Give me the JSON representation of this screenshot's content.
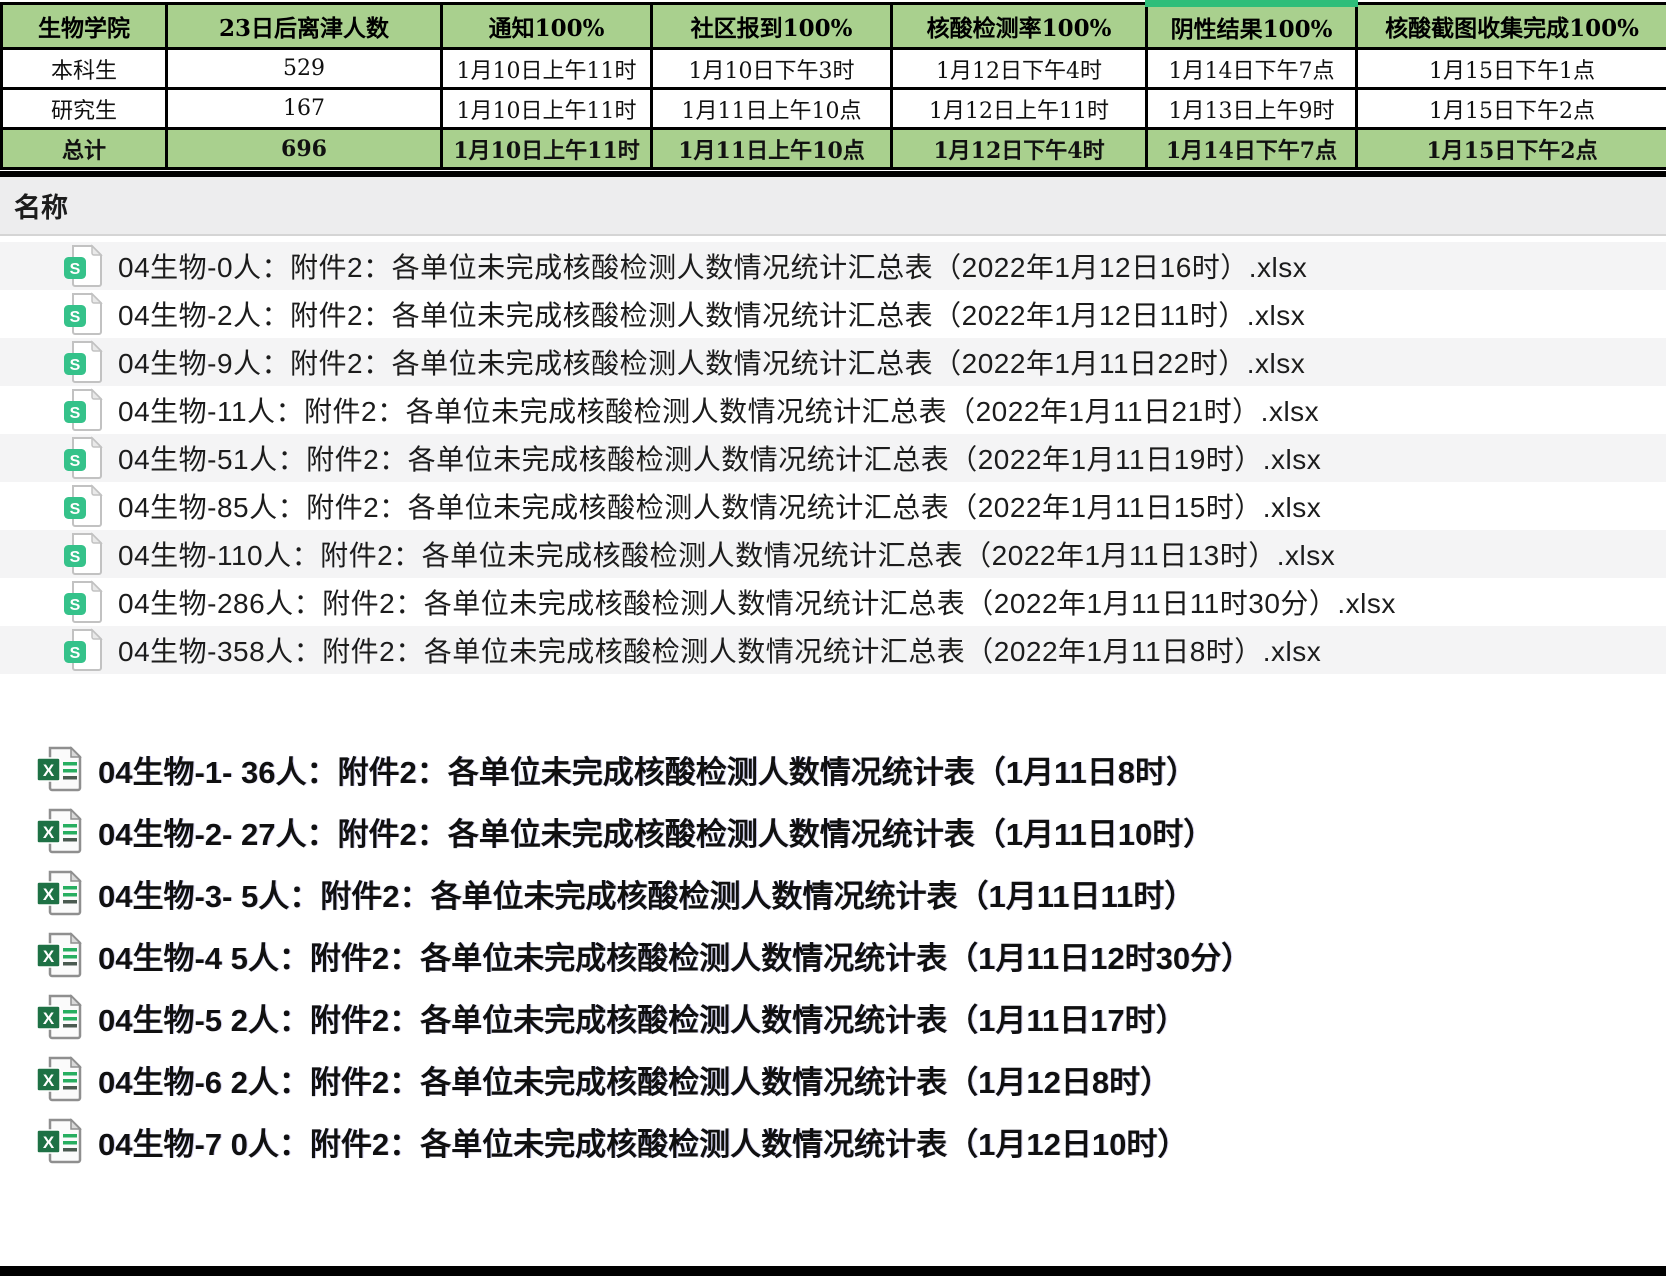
{
  "colors": {
    "table_green": "#a9d08e",
    "highlight_green": "#2fbe7a",
    "bar_gray": "#ededee",
    "stripe_gray": "#f4f4f5",
    "wps_green": "#35c28a",
    "excel_green": "#1e7145"
  },
  "table": {
    "columns": [
      "生物学院",
      "23日后离津人数",
      "通知100%",
      "社区报到100%",
      "核酸检测率100%",
      "阴性结果100%",
      "核酸截图收集完成100%"
    ],
    "highlighted_column_index": 5,
    "rows": [
      {
        "highlight": false,
        "cells": [
          "本科生",
          "529",
          "1月10日上午11时",
          "1月10日下午3时",
          "1月12日下午4时",
          "1月14日下午7点",
          "1月15日下午1点"
        ]
      },
      {
        "highlight": false,
        "cells": [
          "研究生",
          "167",
          "1月10日上午11时",
          "1月11日上午10点",
          "1月12日上午11时",
          "1月13日上午9时",
          "1月15日下午2点"
        ]
      },
      {
        "highlight": true,
        "cells": [
          "总计",
          "696",
          "1月10日上午11时",
          "1月11日上午10点",
          "1月12日下午4时",
          "1月14日下午7点",
          "1月15日下午2点"
        ]
      }
    ]
  },
  "list_header": {
    "label": "名称"
  },
  "files_xlsx": [
    {
      "name": "04生物-0人：附件2：各单位未完成核酸检测人数情况统计汇总表（2022年1月12日16时）.xlsx"
    },
    {
      "name": "04生物-2人：附件2：各单位未完成核酸检测人数情况统计汇总表（2022年1月12日11时）.xlsx"
    },
    {
      "name": "04生物-9人：附件2：各单位未完成核酸检测人数情况统计汇总表（2022年1月11日22时）.xlsx"
    },
    {
      "name": "04生物-11人：附件2：各单位未完成核酸检测人数情况统计汇总表（2022年1月11日21时）.xlsx"
    },
    {
      "name": "04生物-51人：附件2：各单位未完成核酸检测人数情况统计汇总表（2022年1月11日19时）.xlsx"
    },
    {
      "name": "04生物-85人：附件2：各单位未完成核酸检测人数情况统计汇总表（2022年1月11日15时）.xlsx"
    },
    {
      "name": "04生物-110人：附件2：各单位未完成核酸检测人数情况统计汇总表（2022年1月11日13时）.xlsx"
    },
    {
      "name": "04生物-286人：附件2：各单位未完成核酸检测人数情况统计汇总表（2022年1月11日11时30分）.xlsx"
    },
    {
      "name": "04生物-358人：附件2：各单位未完成核酸检测人数情况统计汇总表（2022年1月11日8时）.xlsx"
    }
  ],
  "files_xls": [
    {
      "name": "04生物-1- 36人：附件2：各单位未完成核酸检测人数情况统计表（1月11日8时）"
    },
    {
      "name": "04生物-2- 27人：附件2：各单位未完成核酸检测人数情况统计表（1月11日10时）"
    },
    {
      "name": "04生物-3- 5人：附件2：各单位未完成核酸检测人数情况统计表（1月11日11时）"
    },
    {
      "name": "04生物-4 5人：附件2：各单位未完成核酸检测人数情况统计表（1月11日12时30分）"
    },
    {
      "name": "04生物-5 2人：附件2：各单位未完成核酸检测人数情况统计表（1月11日17时）"
    },
    {
      "name": "04生物-6 2人：附件2：各单位未完成核酸检测人数情况统计表（1月12日8时）"
    },
    {
      "name": "04生物-7 0人：附件2：各单位未完成核酸检测人数情况统计表（1月12日10时）"
    }
  ]
}
